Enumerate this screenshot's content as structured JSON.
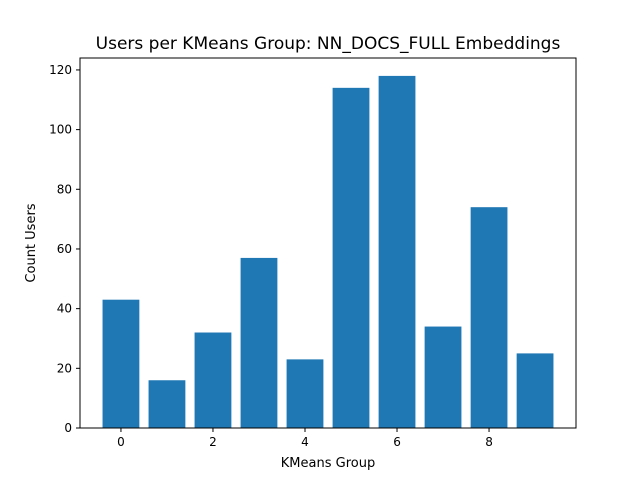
{
  "chart_data": {
    "type": "bar",
    "title": "Users per KMeans Group: NN_DOCS_FULL Embeddings",
    "xlabel": "KMeans Group",
    "ylabel": "Count Users",
    "categories": [
      0,
      1,
      2,
      3,
      4,
      5,
      6,
      7,
      8,
      9
    ],
    "values": [
      43,
      16,
      32,
      57,
      23,
      114,
      118,
      34,
      74,
      25
    ],
    "bar_color": "#1f77b4",
    "xlim": [
      -0.89,
      9.89
    ],
    "ylim": [
      0,
      124
    ],
    "xticks": [
      0,
      2,
      4,
      6,
      8
    ],
    "yticks": [
      0,
      20,
      40,
      60,
      80,
      100,
      120
    ],
    "grid": false,
    "legend": "none"
  }
}
